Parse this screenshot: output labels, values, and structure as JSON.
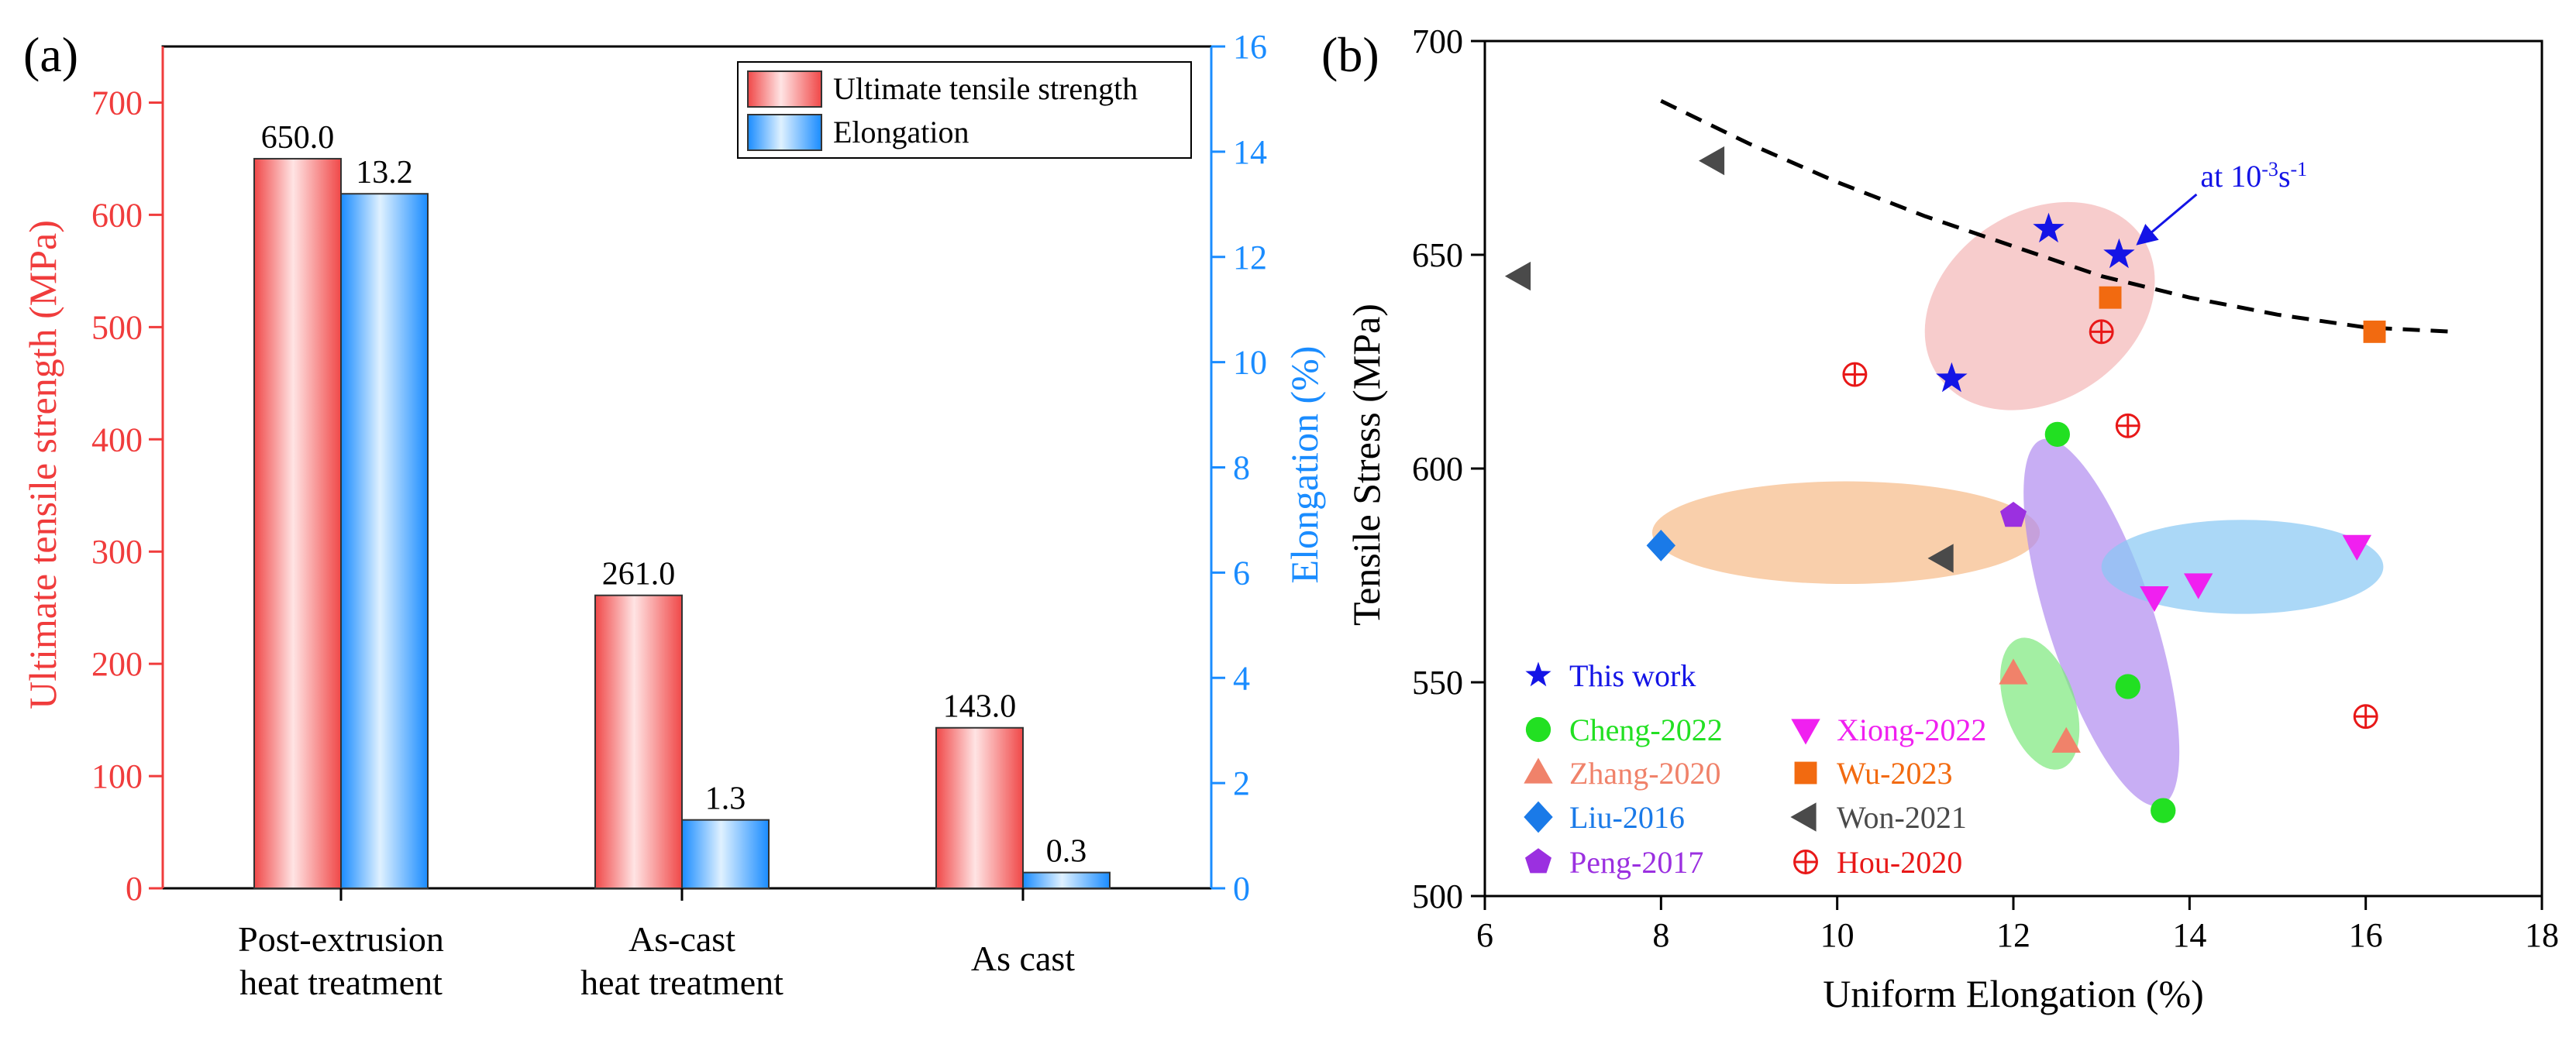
{
  "chart_data": [
    {
      "panel_label": "(a)",
      "type": "bar",
      "categories": [
        [
          "Post-extrusion",
          "heat treatment"
        ],
        [
          "As-cast",
          "heat treatment"
        ],
        [
          "As cast"
        ]
      ],
      "series": [
        {
          "name": "Ultimate tensile strength",
          "axis": "left",
          "values": [
            650.0,
            261.0,
            143.0
          ],
          "labels": [
            "650.0",
            "261.0",
            "143.0"
          ],
          "color": "#f04a4a"
        },
        {
          "name": "Elongation",
          "axis": "right",
          "values": [
            13.2,
            1.3,
            0.3
          ],
          "labels": [
            "13.2",
            "1.3",
            "0.3"
          ],
          "color": "#1a8cff"
        }
      ],
      "left_axis": {
        "label": "Ultimate tensile strength (MPa)",
        "range": [
          0,
          750
        ],
        "ticks": [
          0,
          100,
          200,
          300,
          400,
          500,
          600,
          700
        ],
        "color": "#f03c3c"
      },
      "right_axis": {
        "label": "Elongation (%)",
        "range": [
          0,
          16
        ],
        "ticks": [
          0,
          2,
          4,
          6,
          8,
          10,
          12,
          14,
          16
        ],
        "color": "#1a8cff"
      },
      "legend": {
        "position": "top-right",
        "entries": [
          "Ultimate tensile strength",
          "Elongation"
        ]
      }
    },
    {
      "panel_label": "(b)",
      "type": "scatter",
      "xlabel": "Uniform Elongation (%)",
      "ylabel": "Tensile Stress (MPa)",
      "xlim": [
        6,
        18
      ],
      "ylim": [
        500,
        700
      ],
      "xticks": [
        6,
        8,
        10,
        12,
        14,
        16,
        18
      ],
      "yticks": [
        500,
        550,
        600,
        650,
        700
      ],
      "series": [
        {
          "name": "This work",
          "marker": "star",
          "color": "#1414e6",
          "points": [
            [
              11.3,
              621
            ],
            [
              12.4,
              656
            ],
            [
              13.2,
              650
            ]
          ]
        },
        {
          "name": "Cheng-2022",
          "marker": "circle",
          "color": "#22e022",
          "points": [
            [
              12.5,
              608
            ],
            [
              13.3,
              549
            ],
            [
              13.7,
              520
            ]
          ]
        },
        {
          "name": "Zhang-2020",
          "marker": "triangle-up",
          "color": "#f0826a",
          "points": [
            [
              12.0,
              552
            ],
            [
              12.6,
              536
            ]
          ]
        },
        {
          "name": "Liu-2016",
          "marker": "diamond",
          "color": "#1a7ae8",
          "points": [
            [
              8.0,
              582
            ]
          ]
        },
        {
          "name": "Peng-2017",
          "marker": "pentagon",
          "color": "#9b30e0",
          "points": [
            [
              12.0,
              589
            ]
          ]
        },
        {
          "name": "Xiong-2022",
          "marker": "triangle-down",
          "color": "#f020f0",
          "points": [
            [
              13.6,
              570
            ],
            [
              14.1,
              573
            ],
            [
              15.9,
              582
            ]
          ]
        },
        {
          "name": "Wu-2023",
          "marker": "square",
          "color": "#f26a10",
          "points": [
            [
              13.1,
              640
            ],
            [
              16.1,
              632
            ]
          ]
        },
        {
          "name": "Won-2021",
          "marker": "triangle-left",
          "color": "#4a4a4a",
          "points": [
            [
              6.4,
              645
            ],
            [
              8.6,
              672
            ],
            [
              11.2,
              579
            ]
          ]
        },
        {
          "name": "Hou-2020",
          "marker": "circle-plus",
          "color": "#e81818",
          "points": [
            [
              10.2,
              622
            ],
            [
              13.0,
              632
            ],
            [
              13.3,
              610
            ],
            [
              16.0,
              542
            ]
          ]
        }
      ],
      "trend_line": {
        "style": "dashed",
        "color": "#000000",
        "points": [
          [
            8.0,
            686
          ],
          [
            9.0,
            676
          ],
          [
            10.0,
            667
          ],
          [
            11.0,
            659
          ],
          [
            12.0,
            652
          ],
          [
            13.0,
            645
          ],
          [
            14.0,
            640
          ],
          [
            15.0,
            636
          ],
          [
            16.0,
            633
          ],
          [
            17.0,
            632
          ]
        ]
      },
      "ellipses": [
        {
          "color": "#f4b6b6",
          "center": [
            12.3,
            638
          ],
          "semi_axes": [
            1.4,
            22
          ],
          "rotation_deg": -34
        },
        {
          "color": "#f6ba88",
          "center": [
            10.1,
            585
          ],
          "semi_axes": [
            2.2,
            12
          ],
          "rotation_deg": 0
        },
        {
          "color": "#b18cf0",
          "center": [
            13.0,
            564
          ],
          "semi_axes": [
            0.6,
            45
          ],
          "rotation_deg": -18
        },
        {
          "color": "#88c8f4",
          "center": [
            14.6,
            577
          ],
          "semi_axes": [
            1.6,
            11
          ],
          "rotation_deg": 0
        },
        {
          "color": "#7ce87c",
          "center": [
            12.3,
            545
          ],
          "semi_axes": [
            0.4,
            16
          ],
          "rotation_deg": -18
        }
      ],
      "annotation": {
        "text_base": "at 10",
        "text_exp1": "-3",
        "text_mid": "s",
        "text_exp2": "-1",
        "color": "#1414e6",
        "points_to": [
          13.2,
          650
        ]
      },
      "legend": {
        "position": "bottom-left",
        "entries": [
          "This work",
          "Cheng-2022",
          "Xiong-2022",
          "Zhang-2020",
          "Wu-2023",
          "Liu-2016",
          "Won-2021",
          "Peng-2017",
          "Hou-2020"
        ]
      }
    }
  ]
}
